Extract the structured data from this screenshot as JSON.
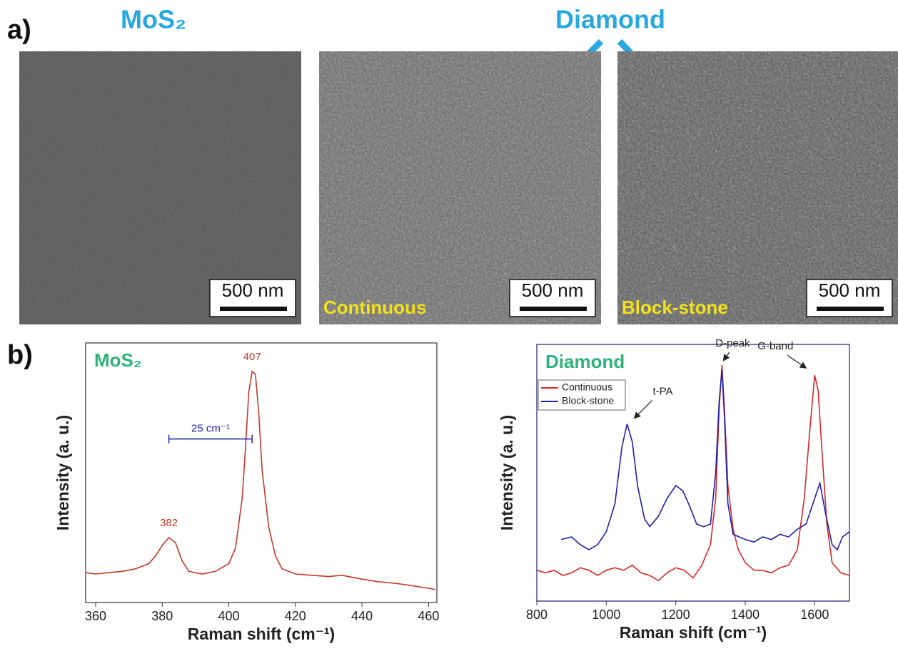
{
  "figure": {
    "panel_a_label": "a)",
    "panel_b_label": "b)",
    "headers": [
      "MoS₂",
      "Diamond"
    ],
    "images": [
      {
        "scale_bar": "500 nm"
      },
      {
        "caption": "Continuous",
        "scale_bar": "500 nm"
      },
      {
        "caption": "Block-stone",
        "scale_bar": "500 nm"
      }
    ]
  },
  "chart_data": [
    {
      "type": "line",
      "title": "MoS₂",
      "xlabel": "Raman shift (cm⁻¹)",
      "ylabel": "Intensity (a. u.)",
      "xlim": [
        357,
        462.5
      ],
      "ylim": [
        0,
        100
      ],
      "xticks": [
        360,
        380,
        400,
        420,
        440,
        460
      ],
      "series": [
        {
          "color": "#c0392b",
          "x": [
            357,
            360,
            364,
            368,
            372,
            376,
            378,
            380,
            382,
            384,
            386,
            388,
            392,
            396,
            400,
            402,
            404,
            405,
            406,
            407,
            408,
            409,
            410,
            412,
            414,
            416,
            420,
            425,
            430,
            434,
            440,
            445,
            450,
            455,
            460,
            462
          ],
          "values": [
            11.5,
            11,
            11.5,
            12,
            13,
            15,
            18,
            22,
            25,
            23,
            16,
            12,
            11,
            12,
            15,
            21,
            40,
            59,
            81,
            89,
            88,
            73,
            51,
            29,
            18,
            13,
            11,
            10.5,
            10,
            10.5,
            9,
            8,
            7.4,
            6.5,
            5.5,
            5
          ]
        }
      ],
      "annotations": [
        {
          "label": "382",
          "x": 382,
          "y": 25
        },
        {
          "label": "407",
          "x": 407,
          "y": 89
        },
        {
          "label": "25 cm⁻¹",
          "x": [
            382,
            407
          ],
          "y": 63
        }
      ]
    },
    {
      "type": "line",
      "title": "Diamond",
      "xlabel": "Raman shift (cm⁻¹)",
      "ylabel": "Intensity (a. u.)",
      "xlim": [
        800,
        1700
      ],
      "ylim": [
        0,
        100
      ],
      "xticks": [
        800,
        1000,
        1200,
        1400,
        1600
      ],
      "legend": "upper left",
      "series": [
        {
          "name": "Continuous",
          "color": "#d62728",
          "x": [
            800,
            825,
            850,
            875,
            900,
            925,
            950,
            975,
            1000,
            1025,
            1050,
            1075,
            1100,
            1125,
            1150,
            1175,
            1200,
            1225,
            1250,
            1275,
            1300,
            1315,
            1325,
            1333,
            1340,
            1350,
            1365,
            1380,
            1400,
            1425,
            1450,
            1475,
            1500,
            1525,
            1550,
            1570,
            1585,
            1600,
            1610,
            1620,
            1635,
            1650,
            1675,
            1700
          ],
          "values": [
            12,
            11,
            12,
            10,
            11,
            13,
            12,
            10,
            12,
            13,
            12,
            14,
            11,
            10,
            8,
            11,
            13,
            12,
            9,
            14,
            22,
            40,
            75,
            92,
            75,
            45,
            28,
            20,
            15,
            12,
            12,
            11,
            13,
            14,
            20,
            40,
            65,
            88,
            82,
            60,
            30,
            15,
            11,
            10
          ]
        },
        {
          "name": "Block-stone",
          "color": "#1f1fa8",
          "x": [
            870,
            900,
            925,
            950,
            975,
            1000,
            1025,
            1045,
            1060,
            1075,
            1090,
            1110,
            1125,
            1150,
            1175,
            1200,
            1220,
            1240,
            1260,
            1280,
            1300,
            1315,
            1325,
            1333,
            1340,
            1350,
            1365,
            1400,
            1425,
            1450,
            1475,
            1500,
            1525,
            1550,
            1575,
            1600,
            1615,
            1630,
            1650,
            1665,
            1680,
            1700
          ],
          "values": [
            24,
            25,
            22,
            20,
            22,
            27,
            38,
            60,
            69,
            62,
            45,
            32,
            29,
            33,
            40,
            45,
            43,
            37,
            30,
            29,
            30,
            50,
            78,
            90,
            72,
            38,
            26,
            24,
            23,
            25,
            24,
            26,
            25,
            28,
            30,
            40,
            46,
            35,
            22,
            20,
            25,
            27
          ]
        }
      ],
      "annotations": [
        {
          "label": "D-peak",
          "x": 1333,
          "y": 92
        },
        {
          "label": "t-PA",
          "x": 1060,
          "y": 69
        },
        {
          "label": "G-band",
          "x": 1600,
          "y": 88
        }
      ]
    }
  ]
}
